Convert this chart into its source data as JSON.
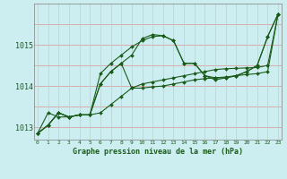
{
  "title": "Graphe pression niveau de la mer (hPa)",
  "background_color": "#cceef0",
  "line_color": "#1a5c1a",
  "grid_color_h": "#e8a0a0",
  "grid_color_v": "#c8d8d8",
  "x_ticks": [
    0,
    1,
    2,
    3,
    4,
    5,
    6,
    7,
    8,
    9,
    10,
    11,
    12,
    13,
    14,
    15,
    16,
    17,
    18,
    19,
    20,
    21,
    22,
    23
  ],
  "ylim": [
    1012.7,
    1016.0
  ],
  "yticks": [
    1013,
    1014,
    1015
  ],
  "series1": [
    1012.85,
    1013.05,
    1013.35,
    1013.25,
    1013.3,
    1013.3,
    1013.35,
    1013.55,
    1013.75,
    1013.95,
    1014.05,
    1014.1,
    1014.15,
    1014.2,
    1014.25,
    1014.3,
    1014.35,
    1014.4,
    1014.42,
    1014.43,
    1014.44,
    1014.45,
    1014.5,
    1015.75
  ],
  "series2": [
    1012.85,
    1013.05,
    1013.35,
    1013.25,
    1013.3,
    1013.3,
    1014.3,
    1014.55,
    1014.75,
    1014.95,
    1015.1,
    1015.2,
    1015.22,
    1015.1,
    1014.55,
    1014.55,
    1014.25,
    1014.2,
    1014.2,
    1014.25,
    1014.35,
    1014.5,
    1015.2,
    1015.75
  ],
  "series3": [
    1012.85,
    1013.05,
    1013.35,
    1013.25,
    1013.3,
    1013.3,
    1014.05,
    1014.35,
    1014.55,
    1014.75,
    1015.15,
    1015.25,
    1015.22,
    1015.1,
    1014.55,
    1014.55,
    1014.25,
    1014.15,
    1014.2,
    1014.25,
    1014.35,
    1014.5,
    1015.2,
    1015.75
  ],
  "series4": [
    1012.85,
    1013.35,
    1013.25,
    1013.25,
    1013.3,
    1013.3,
    1014.05,
    1014.35,
    1014.55,
    1013.95,
    1013.95,
    1013.98,
    1014.0,
    1014.05,
    1014.1,
    1014.15,
    1014.18,
    1014.2,
    1014.22,
    1014.25,
    1014.28,
    1014.3,
    1014.35,
    1015.75
  ]
}
